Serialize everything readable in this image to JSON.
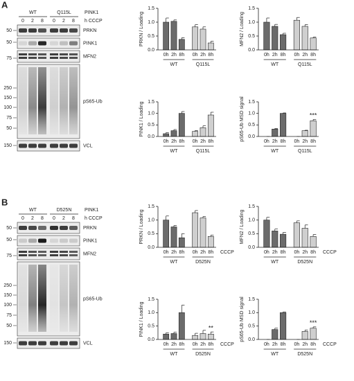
{
  "panels": [
    {
      "label": "A",
      "blot": {
        "header": "PINK1",
        "genotypes": [
          "WT",
          "Q115L"
        ],
        "lanes": [
          "0",
          "2",
          "8",
          "0",
          "2",
          "8"
        ],
        "treatment": "h CCCP",
        "bands": [
          {
            "label": "PRKN",
            "markers": [
              50
            ]
          },
          {
            "label": "PINK1",
            "markers": [
              50
            ]
          },
          {
            "label": "MFN2",
            "markers": [
              75
            ]
          },
          {
            "label": "pS65-Ub",
            "markers": [
              250,
              150,
              100,
              75,
              50
            ]
          },
          {
            "label": "VCL",
            "markers": [
              150
            ]
          }
        ]
      }
    },
    {
      "label": "B",
      "blot": {
        "header": "PINK1",
        "genotypes": [
          "WT",
          "D525N"
        ],
        "lanes": [
          "0",
          "2",
          "8",
          "0",
          "2",
          "8"
        ],
        "treatment": "h CCCP",
        "bands": [
          {
            "label": "PRKN",
            "markers": [
              50
            ]
          },
          {
            "label": "PINK1",
            "markers": [
              50
            ]
          },
          {
            "label": "MFN2",
            "markers": [
              75
            ]
          },
          {
            "label": "pS65-Ub",
            "markers": [
              250,
              150,
              100,
              75,
              50
            ]
          },
          {
            "label": "VCL",
            "markers": [
              150
            ]
          }
        ]
      }
    }
  ],
  "chart_data": [
    {
      "type": "bar",
      "ylabel": "PRKN / Loading",
      "categories": [
        "0h",
        "2h",
        "8h"
      ],
      "ylim": [
        0,
        1.5
      ],
      "yticks": [
        {
          "value": 0,
          "label": "0.0"
        },
        0.5,
        {
          "value": 1,
          "label": "1.0"
        },
        1.5
      ],
      "series": [
        {
          "name": "WT",
          "color": "#6b6b6b",
          "values": [
            1.0,
            1.03,
            0.38
          ],
          "errors": [
            0.15,
            0.05,
            0.06
          ]
        },
        {
          "name": "Q115L",
          "color": "#cfcfcf",
          "values": [
            0.83,
            0.75,
            0.25
          ],
          "errors": [
            0.08,
            0.08,
            0.06
          ]
        }
      ]
    },
    {
      "type": "bar",
      "ylabel": "MFN2 / Loading",
      "categories": [
        "0h",
        "2h",
        "8h"
      ],
      "ylim": [
        0,
        1.5
      ],
      "yticks": [
        {
          "value": 0,
          "label": "0.0"
        },
        0.5,
        {
          "value": 1,
          "label": "1.0"
        },
        1.5
      ],
      "series": [
        {
          "name": "WT",
          "color": "#6b6b6b",
          "values": [
            1.0,
            0.85,
            0.55
          ],
          "errors": [
            0.15,
            0.07,
            0.05
          ]
        },
        {
          "name": "Q115L",
          "color": "#cfcfcf",
          "values": [
            1.07,
            0.85,
            0.43
          ],
          "errors": [
            0.1,
            0.06,
            0.03
          ]
        }
      ]
    },
    {
      "type": "bar",
      "ylabel": "PINK1 / Loading",
      "categories": [
        "0h",
        "2h",
        "8h"
      ],
      "ylim": [
        0,
        1.5
      ],
      "yticks": [
        {
          "value": 0,
          "label": "0.0"
        },
        0.5,
        {
          "value": 1,
          "label": "1.0"
        },
        1.5
      ],
      "series": [
        {
          "name": "WT",
          "color": "#6b6b6b",
          "values": [
            0.12,
            0.25,
            1.0
          ],
          "errors": [
            0.05,
            0.05,
            0.08
          ]
        },
        {
          "name": "Q115L",
          "color": "#cfcfcf",
          "values": [
            0.22,
            0.38,
            0.93
          ],
          "errors": [
            0.04,
            0.08,
            0.12
          ]
        }
      ]
    },
    {
      "type": "bar",
      "ylabel": "pS65-Ub MSD signal",
      "categories": [
        "0h",
        "2h",
        "8h"
      ],
      "ylim": [
        0,
        1.5
      ],
      "yticks": [
        {
          "value": 0,
          "label": "0.0"
        },
        0.5,
        {
          "value": 1,
          "label": "1.0"
        },
        1.5
      ],
      "series": [
        {
          "name": "WT",
          "color": "#6b6b6b",
          "values": [
            0,
            0.32,
            1.0
          ],
          "errors": [
            0,
            0.03,
            0.02
          ]
        },
        {
          "name": "Q115L",
          "color": "#cfcfcf",
          "values": [
            0,
            0.25,
            0.68
          ],
          "errors": [
            0,
            0.02,
            0.06
          ],
          "annotations": [
            null,
            null,
            "***"
          ]
        }
      ]
    },
    {
      "type": "bar",
      "ylabel": "PRKN / Loading",
      "xlabel": "CCCP",
      "categories": [
        "0h",
        "2h",
        "8h"
      ],
      "ylim": [
        0,
        1.5
      ],
      "yticks": [
        {
          "value": 0,
          "label": "0.0"
        },
        0.5,
        {
          "value": 1,
          "label": "1.0"
        },
        1.5
      ],
      "series": [
        {
          "name": "WT",
          "color": "#6b6b6b",
          "values": [
            1.0,
            0.75,
            0.35
          ],
          "errors": [
            0.15,
            0.05,
            0.15
          ]
        },
        {
          "name": "D525N",
          "color": "#cfcfcf",
          "values": [
            1.27,
            1.08,
            0.4
          ],
          "errors": [
            0.08,
            0.05,
            0.05
          ]
        }
      ]
    },
    {
      "type": "bar",
      "ylabel": "MFN2 / Loading",
      "xlabel": "CCCP",
      "categories": [
        "0h",
        "2h",
        "8h"
      ],
      "ylim": [
        0,
        1.5
      ],
      "yticks": [
        {
          "value": 0,
          "label": "0.0"
        },
        0.5,
        {
          "value": 1,
          "label": "1.0"
        },
        1.5
      ],
      "series": [
        {
          "name": "WT",
          "color": "#6b6b6b",
          "values": [
            1.0,
            0.6,
            0.48
          ],
          "errors": [
            0.1,
            0.07,
            0.07
          ]
        },
        {
          "name": "D525N",
          "color": "#cfcfcf",
          "values": [
            0.9,
            0.7,
            0.4
          ],
          "errors": [
            0.07,
            0.12,
            0.07
          ]
        }
      ]
    },
    {
      "type": "bar",
      "ylabel": "PINK1 / Loading",
      "xlabel": "CCCP",
      "categories": [
        "0h",
        "2h",
        "8h"
      ],
      "ylim": [
        0,
        1.5
      ],
      "yticks": [
        {
          "value": 0,
          "label": "0.0"
        },
        0.5,
        {
          "value": 1,
          "label": "1.0"
        },
        1.5
      ],
      "series": [
        {
          "name": "WT",
          "color": "#6b6b6b",
          "values": [
            0.2,
            0.22,
            1.0
          ],
          "errors": [
            0.05,
            0.05,
            0.28
          ]
        },
        {
          "name": "D525N",
          "color": "#cfcfcf",
          "values": [
            0.15,
            0.22,
            0.2
          ],
          "errors": [
            0.08,
            0.12,
            0.08
          ],
          "annotations": [
            null,
            null,
            "**"
          ]
        }
      ]
    },
    {
      "type": "bar",
      "ylabel": "pS65-Ub MSD signal",
      "xlabel": "CCCP",
      "categories": [
        "0h",
        "2h",
        "8h"
      ],
      "ylim": [
        0,
        1.5
      ],
      "yticks": [
        {
          "value": 0,
          "label": "0.0"
        },
        0.5,
        {
          "value": 1,
          "label": "1.0"
        },
        1.5
      ],
      "series": [
        {
          "name": "WT",
          "color": "#6b6b6b",
          "values": [
            0,
            0.37,
            1.0
          ],
          "errors": [
            0,
            0.05,
            0.03
          ]
        },
        {
          "name": "D525N",
          "color": "#cfcfcf",
          "values": [
            0,
            0.3,
            0.42
          ],
          "errors": [
            0,
            0.05,
            0.05
          ],
          "annotations": [
            null,
            null,
            "***"
          ]
        }
      ]
    }
  ]
}
